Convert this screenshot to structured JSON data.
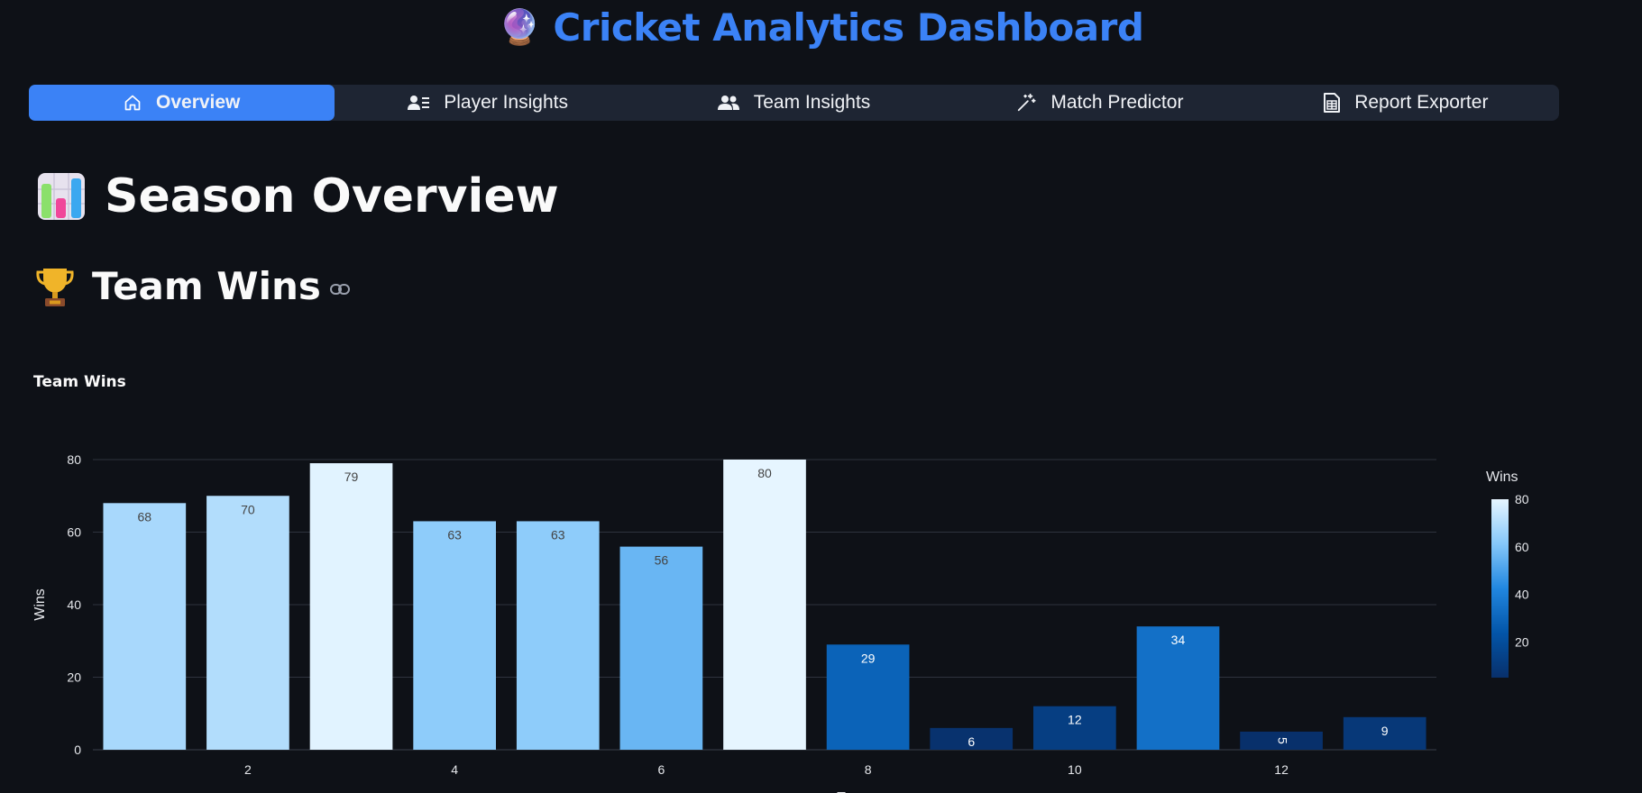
{
  "app": {
    "title": "Cricket Analytics Dashboard",
    "title_icon": "crystal-ball-icon"
  },
  "tabs": [
    {
      "label": "Overview",
      "icon": "home-icon",
      "active": true
    },
    {
      "label": "Player Insights",
      "icon": "player-card-icon",
      "active": false
    },
    {
      "label": "Team Insights",
      "icon": "users-icon",
      "active": false
    },
    {
      "label": "Match Predictor",
      "icon": "magic-wand-icon",
      "active": false
    },
    {
      "label": "Report Exporter",
      "icon": "spreadsheet-file-icon",
      "active": false
    }
  ],
  "page": {
    "heading": "Season Overview",
    "heading_icon": "bar-chart-icon",
    "subheading": "Team Wins",
    "subheading_icon": "trophy-icon",
    "chart_caption": "Team Wins"
  },
  "colors": {
    "accent": "#3b82f6",
    "background": "#0e1117",
    "tab_bar": "#1e2533"
  },
  "chart_data": {
    "type": "bar",
    "title": "Team Wins",
    "x": [
      1,
      2,
      3,
      4,
      5,
      6,
      7,
      8,
      9,
      10,
      11,
      12,
      13
    ],
    "values": [
      68,
      70,
      79,
      63,
      63,
      56,
      80,
      29,
      6,
      12,
      34,
      5,
      9
    ],
    "x_ticks": [
      "2",
      "4",
      "6",
      "8",
      "10",
      "12"
    ],
    "x_tick_values": [
      2,
      4,
      6,
      8,
      10,
      12
    ],
    "xlabel": "T",
    "ylabel": "Wins",
    "y_ticks": [
      "0",
      "20",
      "40",
      "60",
      "80"
    ],
    "y_tick_values": [
      0,
      20,
      40,
      60,
      80
    ],
    "ylim": [
      0,
      80
    ],
    "data_labels": true,
    "colorscale": "Blues",
    "colorbar": {
      "title": "Wins",
      "ticks": [
        "20",
        "40",
        "60",
        "80"
      ],
      "tick_values": [
        20,
        40,
        60,
        80
      ],
      "range": [
        5,
        80
      ]
    },
    "grid": true
  }
}
